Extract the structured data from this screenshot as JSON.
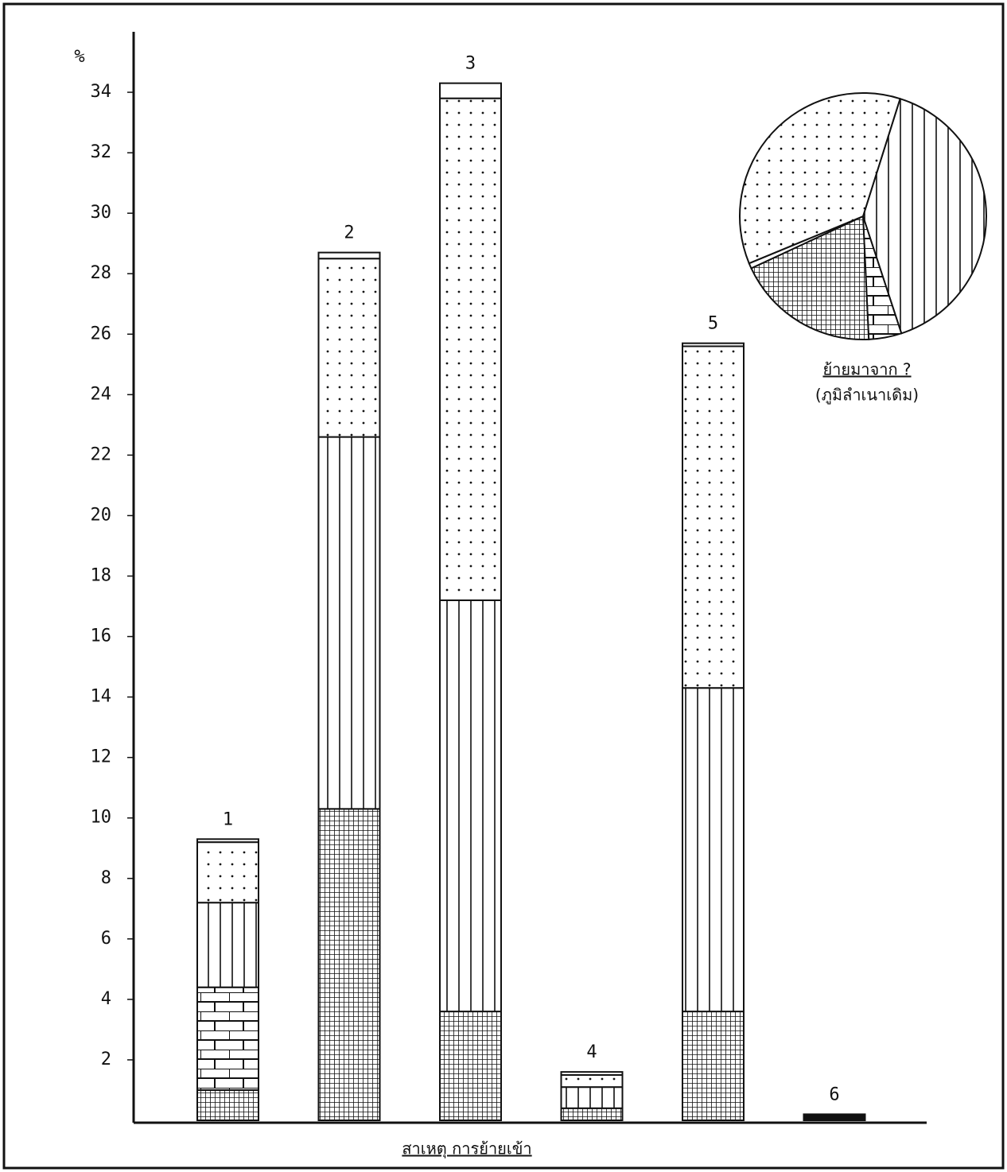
{
  "chart_data": [
    {
      "type": "stacked_bar",
      "ylabel": "%",
      "xlabel": "สาเหตุ การย้ายเข้า",
      "categories": [
        "1",
        "2",
        "3",
        "4",
        "5",
        "6"
      ],
      "series": [
        {
          "pattern": "grid",
          "values": [
            1.0,
            10.3,
            3.6,
            0.4,
            3.6,
            0.2
          ]
        },
        {
          "pattern": "brick",
          "values": [
            3.4,
            0,
            0,
            0,
            0,
            0
          ]
        },
        {
          "pattern": "vertical",
          "values": [
            2.8,
            12.3,
            13.6,
            0.7,
            10.7,
            0
          ]
        },
        {
          "pattern": "dots",
          "values": [
            2.0,
            5.9,
            16.6,
            0.4,
            11.3,
            0
          ]
        },
        {
          "pattern": "blank",
          "values": [
            0.1,
            0.2,
            0.5,
            0.1,
            0.1,
            0
          ]
        }
      ],
      "ylim": [
        0,
        36
      ],
      "yticks": [
        2,
        4,
        6,
        8,
        10,
        12,
        14,
        16,
        18,
        20,
        22,
        24,
        26,
        28,
        30,
        32,
        34
      ]
    },
    {
      "type": "pie",
      "title": "ย้ายมาจาก ?",
      "subtitle": "(ภูมิลำเนาเดิม)",
      "startangle": 17.5,
      "values": [
        40.1,
        4.3,
        18.8,
        0.7,
        36.1
      ],
      "patterns": [
        "vertical",
        "brick",
        "grid",
        "blank",
        "dots"
      ]
    }
  ]
}
